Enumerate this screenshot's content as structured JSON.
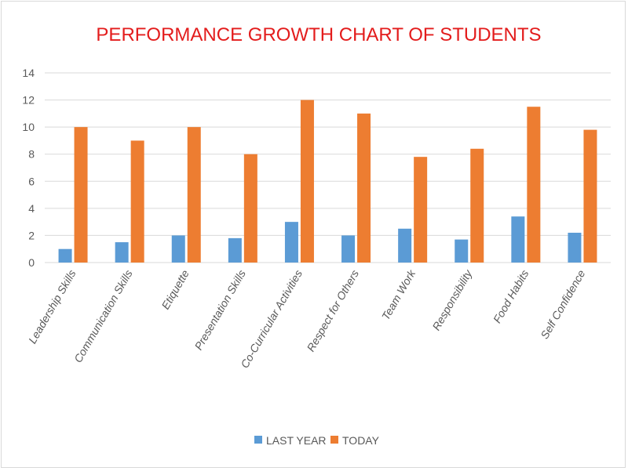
{
  "chart_data": {
    "type": "bar",
    "title": "PERFORMANCE GROWTH CHART OF STUDENTS",
    "xlabel": "",
    "ylabel": "",
    "ylim": [
      0,
      14
    ],
    "yticks": [
      "0",
      "2",
      "4",
      "6",
      "8",
      "10",
      "12",
      "14"
    ],
    "grid": true,
    "legend_position": "bottom",
    "categories": [
      "Leadership Skills",
      "Communication Skills",
      "Etiquette",
      "Presentation Skills",
      "Co-Curricular Activities",
      "Respect for Others",
      "Team Work",
      "Responsibility",
      "Food Habits",
      "Self Confidence"
    ],
    "series": [
      {
        "name": "LAST YEAR",
        "color": "#5b9bd5",
        "values": [
          1,
          1.5,
          2,
          1.8,
          3,
          2,
          2.5,
          1.7,
          3.4,
          2.2
        ]
      },
      {
        "name": "TODAY",
        "color": "#ed7d31",
        "values": [
          10,
          9,
          10,
          8,
          12,
          11,
          7.8,
          8.4,
          11.5,
          9.8
        ]
      }
    ],
    "colors": {
      "title": "#e31c1c",
      "grid": "#d9d9d9",
      "text": "#595959"
    }
  }
}
